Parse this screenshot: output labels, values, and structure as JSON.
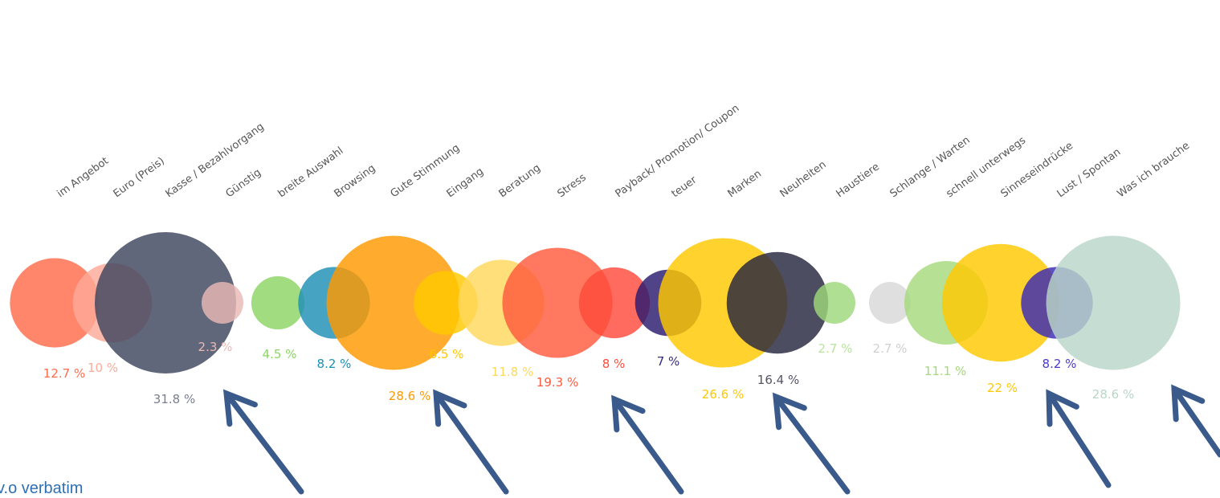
{
  "footer_text": "v.o verbatim",
  "chart_data": {
    "type": "bubble",
    "unit": "%",
    "points": [
      {
        "label": "im Angebot",
        "value": 12.7,
        "value_label": "12.7 %",
        "color": "#ff6b4a"
      },
      {
        "label": "Euro (Preis)",
        "value": 10,
        "value_label": "10 %",
        "color": "#ffaa98"
      },
      {
        "label": "Kasse / Bezahlvorgang",
        "value": 31.8,
        "value_label": "31.8 %",
        "color": "#3e455e"
      },
      {
        "label": "Günstig",
        "value": 2.3,
        "value_label": "2.3 %",
        "color": "#e9b8b4"
      },
      {
        "label": "breite Auswahl",
        "value": 4.5,
        "value_label": "4.5 %",
        "color": "#8dd464"
      },
      {
        "label": "Browsing",
        "value": 8.2,
        "value_label": "8.2 %",
        "color": "#1f8fb4"
      },
      {
        "label": "Gute Stimmung",
        "value": 28.6,
        "value_label": "28.6 %",
        "color": "#ff9a00"
      },
      {
        "label": "Eingang",
        "value": 6.5,
        "value_label": "6.5 %",
        "color": "#ffc800"
      },
      {
        "label": "Beratung",
        "value": 11.8,
        "value_label": "11.8 %",
        "color": "#ffd85c"
      },
      {
        "label": "Stress",
        "value": 19.3,
        "value_label": "19.3 %",
        "color": "#ff5a3c"
      },
      {
        "label": "Payback/ Promotion/ Coupon",
        "value": 8,
        "value_label": "8 %",
        "color": "#ff4a3a"
      },
      {
        "label": "teuer",
        "value": 7,
        "value_label": "7 %",
        "color": "#2a1a6e"
      },
      {
        "label": "Marken",
        "value": 26.6,
        "value_label": "26.6 %",
        "color": "#ffc800"
      },
      {
        "label": "Neuheiten",
        "value": 16.4,
        "value_label": "16.4 %",
        "color": "#26263e"
      },
      {
        "label": "Haustiere",
        "value": 2.7,
        "value_label": "2.7 %",
        "color": "#9ed87a"
      },
      {
        "label": "Schlange / Warten",
        "value": 2.7,
        "value_label": "2.7 %",
        "color": "#d8d8d8"
      },
      {
        "label": "schnell unterwegs",
        "value": 11.1,
        "value_label": "11.1 %",
        "color": "#a6d97c"
      },
      {
        "label": "Sinneseindrücke",
        "value": 22,
        "value_label": "22 %",
        "color": "#ffc800"
      },
      {
        "label": "Lust / Spontan",
        "value": 8.2,
        "value_label": "8.2 %",
        "color": "#3a2ab4"
      },
      {
        "label": "Was ich brauche",
        "value": 28.6,
        "value_label": "28.6 %",
        "color": "#b8d6c8"
      }
    ],
    "arrow_color": "#3a5a8c"
  }
}
